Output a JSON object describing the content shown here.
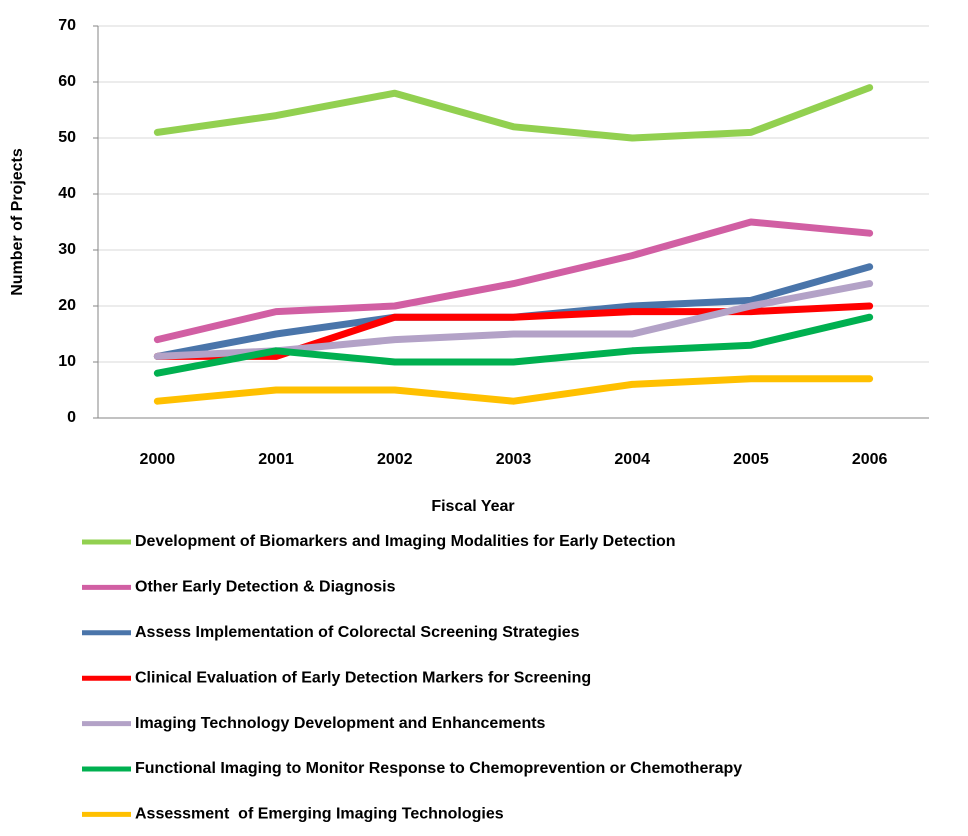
{
  "chart_data": {
    "type": "line",
    "x_label": "Fiscal Year",
    "y_label": "Number of Projects",
    "categories": [
      "2000",
      "2001",
      "2002",
      "2003",
      "2004",
      "2005",
      "2006"
    ],
    "ylim": [
      0,
      70
    ],
    "yticks": [
      0,
      10,
      20,
      30,
      40,
      50,
      60,
      70
    ],
    "grid": true,
    "series": [
      {
        "name": "Development of Biomarkers and Imaging Modalities for Early Detection",
        "color": "#92d050",
        "values": [
          51,
          54,
          58,
          52,
          50,
          51,
          59
        ]
      },
      {
        "name": "Other Early Detection & Diagnosis",
        "color": "#d15fa3",
        "values": [
          14,
          19,
          20,
          24,
          29,
          35,
          33
        ]
      },
      {
        "name": "Assess Implementation of Colorectal Screening Strategies",
        "color": "#4a75aa",
        "values": [
          11,
          15,
          18,
          18,
          20,
          21,
          27
        ]
      },
      {
        "name": "Clinical Evaluation of Early Detection Markers for Screening",
        "color": "#ff0000",
        "values": [
          11,
          11,
          18,
          18,
          19,
          19,
          20
        ]
      },
      {
        "name": "Imaging Technology Development and Enhancements",
        "color": "#b3a2c7",
        "values": [
          11,
          12,
          14,
          15,
          15,
          20,
          24
        ]
      },
      {
        "name": "Functional Imaging to Monitor Response to Chemoprevention or Chemotherapy",
        "color": "#00b050",
        "values": [
          8,
          12,
          10,
          10,
          12,
          13,
          18
        ]
      },
      {
        "name": "Assessment  of Emerging Imaging Technologies",
        "color": "#ffc000",
        "values": [
          3,
          5,
          5,
          3,
          6,
          7,
          7
        ]
      }
    ]
  }
}
